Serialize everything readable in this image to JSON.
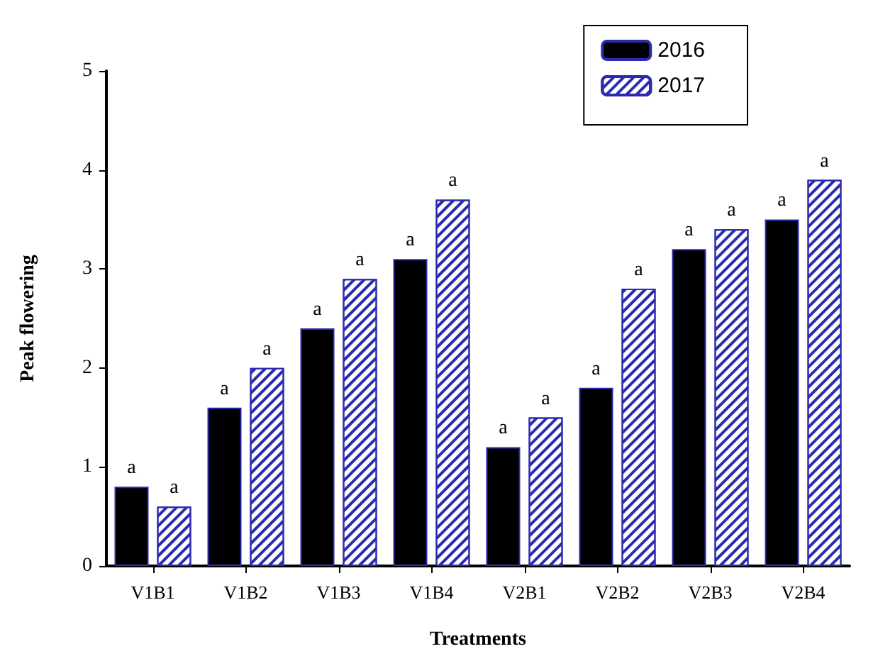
{
  "chart_data": {
    "type": "bar",
    "xlabel": "Treatments",
    "ylabel": "Peak flowering",
    "categories": [
      "V1B1",
      "V1B2",
      "V1B3",
      "V1B4",
      "V2B1",
      "V2B2",
      "V2B3",
      "V2B4"
    ],
    "series": [
      {
        "name": "2016",
        "color": "#000000",
        "values": [
          0.8,
          1.6,
          2.4,
          3.1,
          1.2,
          1.8,
          3.2,
          3.5
        ],
        "value_labels": [
          "a",
          "a",
          "a",
          "a",
          "a",
          "a",
          "a",
          "a"
        ]
      },
      {
        "name": "2017",
        "color": "#2b2bb0",
        "values": [
          0.6,
          2.0,
          2.9,
          3.7,
          1.5,
          2.8,
          3.4,
          3.9
        ],
        "value_labels": [
          "a",
          "a",
          "a",
          "a",
          "a",
          "a",
          "a",
          "a"
        ]
      }
    ],
    "ylim": [
      0,
      5
    ],
    "yticks": [
      0,
      1,
      2,
      3,
      4,
      5
    ],
    "grid": false,
    "legend": "top right"
  }
}
